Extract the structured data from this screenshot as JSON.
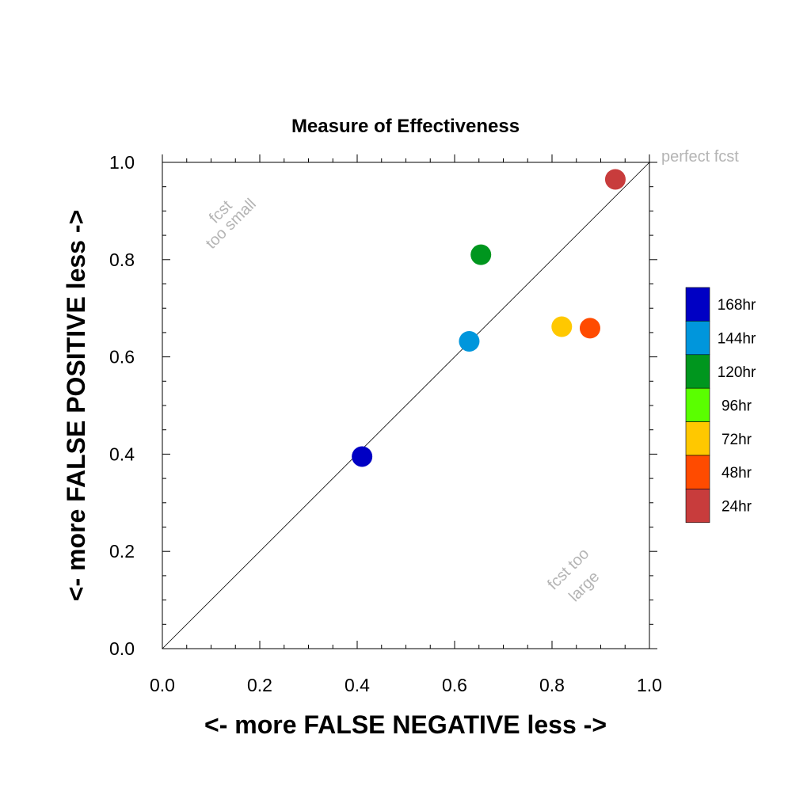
{
  "chart_data": {
    "type": "scatter",
    "title": "Measure of Effectiveness",
    "xlabel": "<- more   FALSE NEGATIVE   less ->",
    "ylabel": "<- more   FALSE POSITIVE   less ->",
    "xlim": [
      0.0,
      1.0
    ],
    "ylim": [
      0.0,
      1.0
    ],
    "xticks": [
      "0.0",
      "0.2",
      "0.4",
      "0.6",
      "0.8",
      "1.0"
    ],
    "yticks": [
      "0.0",
      "0.2",
      "0.4",
      "0.6",
      "0.8",
      "1.0"
    ],
    "grid": false,
    "diagonal_line": true,
    "legend_placement": "right",
    "annotations": {
      "perfect": "perfect fcst",
      "too_small_1": "fcst",
      "too_small_2": "too small",
      "too_large_1": "fcst too",
      "too_large_2": "large"
    },
    "series": [
      {
        "name": "168hr",
        "color": "#0000c4",
        "x": 0.41,
        "y": 0.395
      },
      {
        "name": "144hr",
        "color": "#0096dc",
        "x": 0.63,
        "y": 0.632
      },
      {
        "name": "120hr",
        "color": "#00961e",
        "x": 0.654,
        "y": 0.81
      },
      {
        "name": "96hr",
        "color": "#5aff00",
        "x": null,
        "y": null
      },
      {
        "name": "72hr",
        "color": "#ffc800",
        "x": 0.82,
        "y": 0.662
      },
      {
        "name": "48hr",
        "color": "#ff4b00",
        "x": 0.878,
        "y": 0.659
      },
      {
        "name": "24hr",
        "color": "#c83c3c",
        "x": 0.93,
        "y": 0.965
      }
    ]
  }
}
